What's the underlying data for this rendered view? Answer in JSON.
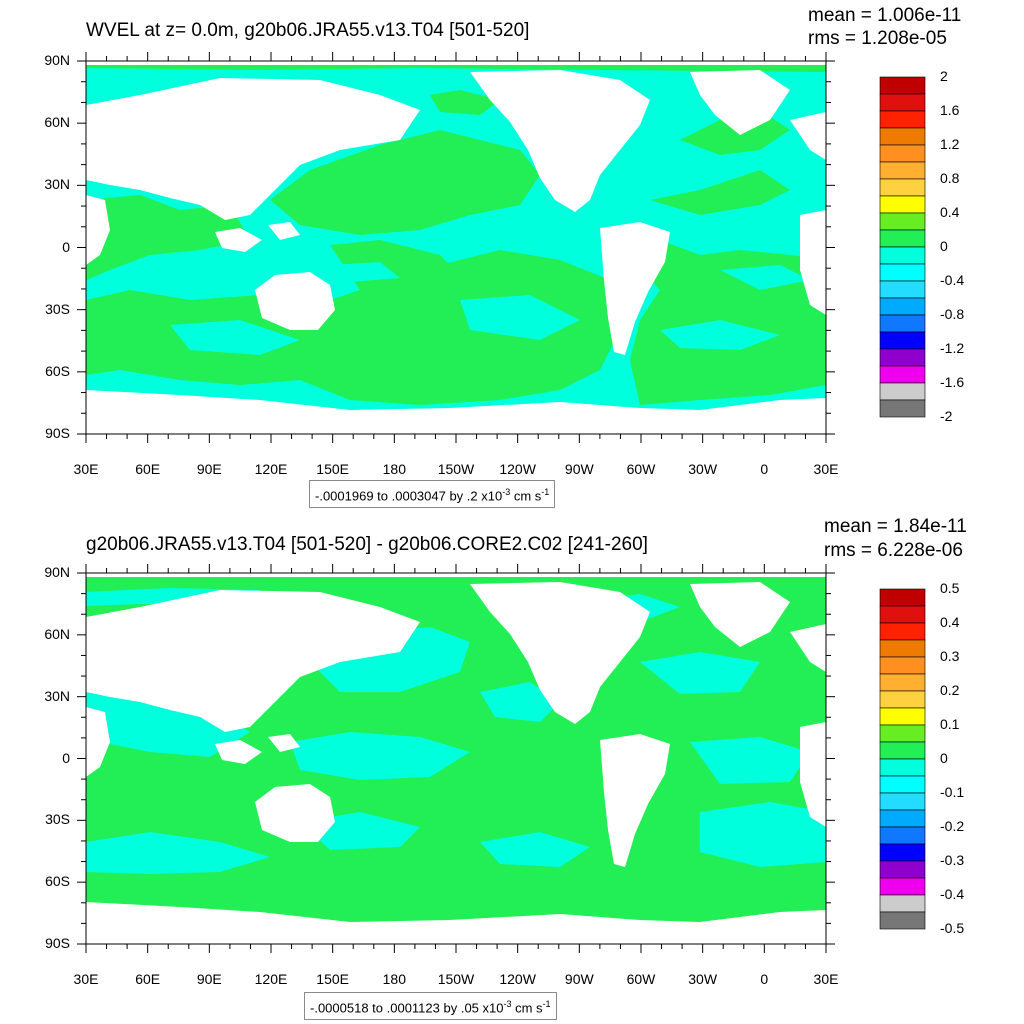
{
  "colors": {
    "ocean_pos": "#22ee55",
    "ocean_neg": "#00ffdd",
    "land": "#ffffff",
    "frame": "#000000",
    "colorbar_top": [
      "#c00000",
      "#e01010",
      "#ff2200",
      "#ef7a00",
      "#ff9020",
      "#ffb030",
      "#ffd040",
      "#ffff00",
      "#66ee22",
      "#22ee55",
      "#00ffdd",
      "#00ffff",
      "#22ddff",
      "#00aaff",
      "#1077ff",
      "#0000ff",
      "#9000cc",
      "#ee00ee",
      "#cccccc",
      "#777777"
    ],
    "colorbar_bottom": [
      "#c00000",
      "#e01010",
      "#ff2200",
      "#ef7a00",
      "#ff9020",
      "#ffb030",
      "#ffd040",
      "#ffff00",
      "#66ee22",
      "#22ee55",
      "#00ffdd",
      "#00ffff",
      "#22ddff",
      "#00aaff",
      "#1077ff",
      "#0000ff",
      "#9000cc",
      "#ee00ee",
      "#cccccc",
      "#777777"
    ]
  },
  "axes": {
    "lat_labels": [
      "90N",
      "60N",
      "30N",
      "0",
      "30S",
      "60S",
      "90S"
    ],
    "lon_labels": [
      "30E",
      "60E",
      "90E",
      "120E",
      "150E",
      "180",
      "150W",
      "120W",
      "90W",
      "60W",
      "30W",
      "0",
      "30E"
    ]
  },
  "top": {
    "title": "WVEL at z=   0.0m, g20b06.JRA55.v13.T04 [501-520]",
    "mean": "mean = 1.006e-11",
    "rms": "rms = 1.208e-05",
    "range_text": "-.0001969 to .0003047 by .2 x10",
    "range_exp": "-3",
    "range_units": " cm s",
    "range_units_exp": "-1",
    "colorbar_labels": [
      "2",
      "1.6",
      "1.2",
      "0.8",
      "0.4",
      "0",
      "-0.4",
      "-0.8",
      "-1.2",
      "-1.6",
      "-2"
    ]
  },
  "bottom": {
    "title": "g20b06.JRA55.v13.T04 [501-520] - g20b06.CORE2.C02 [241-260]",
    "mean": "mean = 1.84e-11",
    "rms": "rms = 6.228e-06",
    "range_text": "-.0000518 to .0001123 by .05 x10",
    "range_exp": "-3",
    "range_units": " cm s",
    "range_units_exp": "-1",
    "colorbar_labels": [
      "0.5",
      "0.4",
      "0.3",
      "0.2",
      "0.1",
      "0",
      "-0.1",
      "-0.2",
      "-0.3",
      "-0.4",
      "-0.5"
    ]
  }
}
